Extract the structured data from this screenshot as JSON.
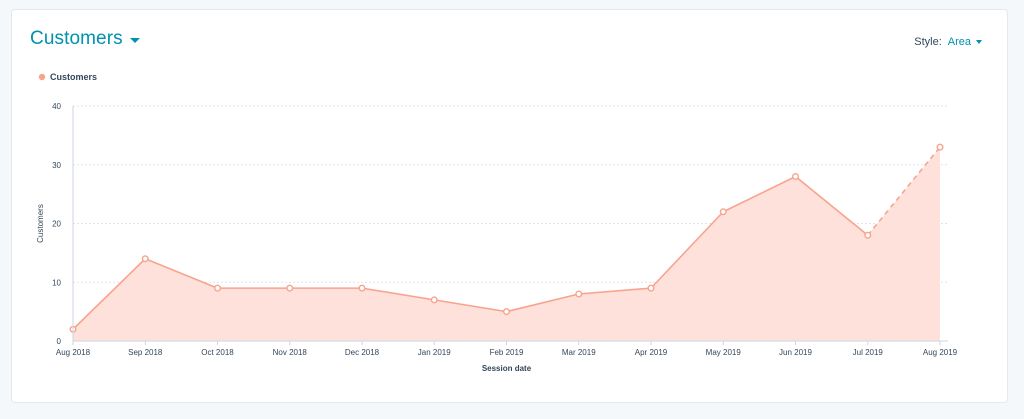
{
  "header": {
    "title": "Customers",
    "style_label": "Style:",
    "style_value": "Area"
  },
  "colors": {
    "accent": "#0091ae",
    "series_line": "#f8a38e",
    "series_fill": "#fde1da",
    "grid": "#dfe3eb"
  },
  "icons": {
    "title_dropdown": "caret-down-icon",
    "style_dropdown": "caret-down-icon",
    "legend_marker": "circle-icon"
  },
  "chart_data": {
    "type": "area",
    "xlabel": "Session date",
    "ylabel": "Customers",
    "ylim": [
      0,
      40
    ],
    "yticks": [
      0,
      10,
      20,
      30,
      40
    ],
    "grid": true,
    "legend_position": "top-left",
    "categories": [
      "Aug 2018",
      "Sep 2018",
      "Oct 2018",
      "Nov 2018",
      "Dec 2018",
      "Jan 2019",
      "Feb 2019",
      "Mar 2019",
      "Apr 2019",
      "May 2019",
      "Jun 2019",
      "Jul 2019",
      "Aug 2019"
    ],
    "series": [
      {
        "name": "Customers",
        "values": [
          2,
          14,
          9,
          9,
          9,
          7,
          5,
          8,
          9,
          22,
          28,
          18,
          33
        ],
        "last_segment_dashed": true
      }
    ]
  }
}
